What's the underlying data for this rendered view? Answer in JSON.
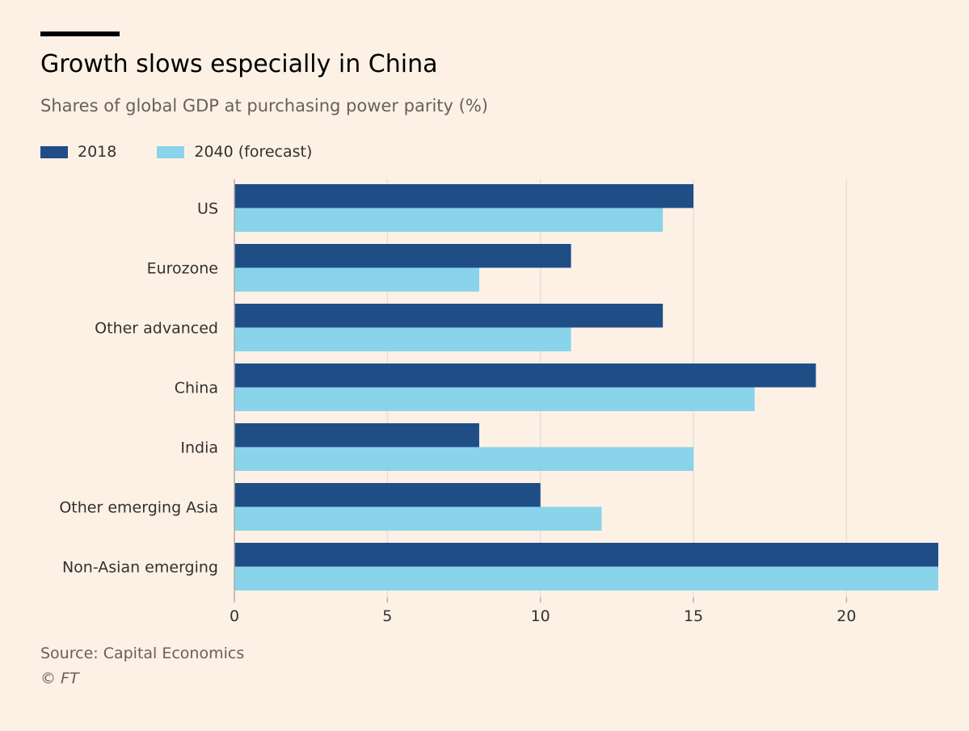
{
  "header": {
    "title": "Growth slows especially in China",
    "subtitle": "Shares of global GDP at purchasing power parity (%)"
  },
  "footer": {
    "source": "Source: Capital Economics",
    "credit": "© FT"
  },
  "colors": {
    "background": "#fdf1e6",
    "series_2018": "#1f4e87",
    "series_2040": "#89d4ea",
    "gridline": "#e9dfd5",
    "axis": "#b3aca5"
  },
  "chart_data": {
    "type": "bar",
    "orientation": "horizontal",
    "categories": [
      "US",
      "Eurozone",
      "Other advanced",
      "China",
      "India",
      "Other emerging Asia",
      "Non-Asian emerging"
    ],
    "series": [
      {
        "name": "2018",
        "color": "#1f4e87",
        "values": [
          15,
          11,
          14,
          19,
          8,
          10,
          23
        ]
      },
      {
        "name": "2040 (forecast)",
        "color": "#89d4ea",
        "values": [
          14,
          8,
          11,
          17,
          15,
          12,
          23
        ]
      }
    ],
    "xlim": [
      0,
      23
    ],
    "xticks": [
      0,
      5,
      10,
      15,
      20
    ],
    "xlabel": "",
    "ylabel": "",
    "grid": "vertical",
    "legend_position": "top-left"
  }
}
